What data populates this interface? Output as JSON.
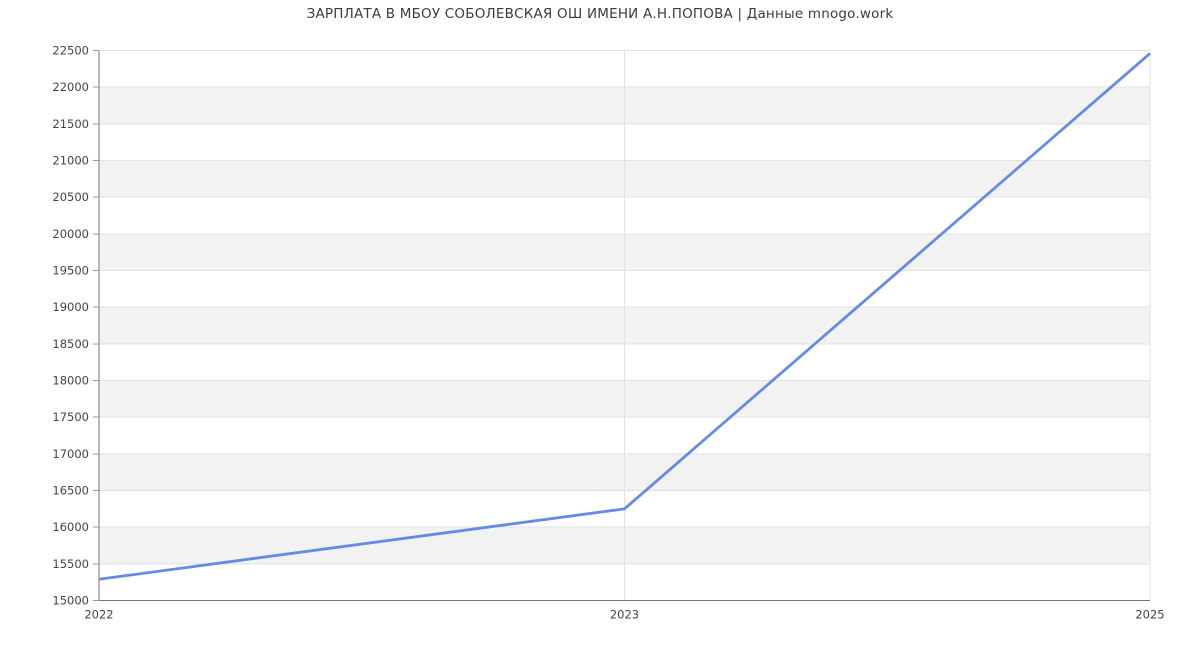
{
  "title": "ЗАРПЛАТА В МБОУ СОБОЛЕВСКАЯ ОШ ИМЕНИ А.Н.ПОПОВА | Данные mnogo.work",
  "chart_data": {
    "type": "line",
    "title": "ЗАРПЛАТА В МБОУ СОБОЛЕВСКАЯ ОШ ИМЕНИ А.Н.ПОПОВА | Данные mnogo.work",
    "categories": [
      "2022",
      "2023",
      "2025"
    ],
    "values": [
      15290,
      16250,
      22460
    ],
    "xlabel": "",
    "ylabel": "",
    "ylim": [
      15000,
      22500
    ],
    "ytick_step": 500,
    "legend": "none",
    "grid": {
      "horizontal": true,
      "vertical_at_categories": true,
      "striped_bands": true,
      "top_band_white": true
    },
    "colors": {
      "line": "#648CE6",
      "band": "#F2F2F2",
      "gridline": "#E2E2E2",
      "axis": "#757575",
      "tick": "#999999",
      "title_text": "#3C3C3C",
      "label_text": "#444444",
      "background": "#FFFFFF"
    }
  }
}
